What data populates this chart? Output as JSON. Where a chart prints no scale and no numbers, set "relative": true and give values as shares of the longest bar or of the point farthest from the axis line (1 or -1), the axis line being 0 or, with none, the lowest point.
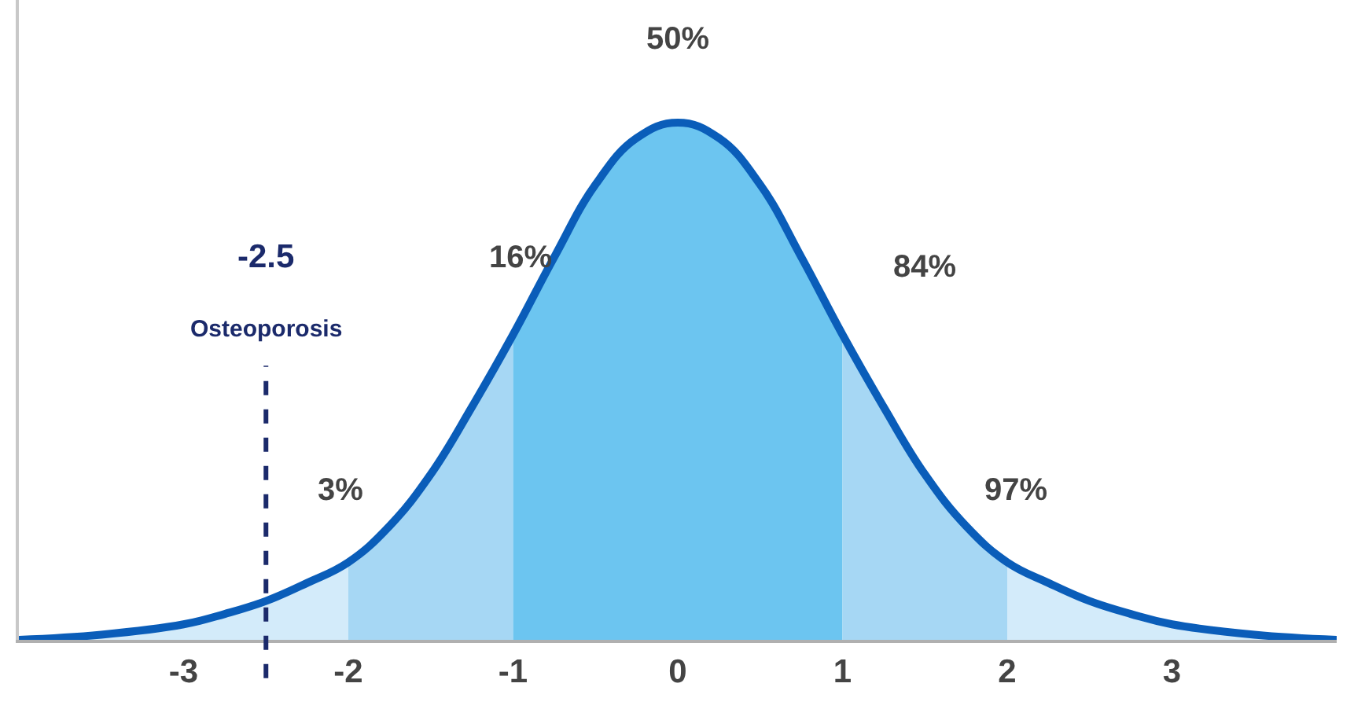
{
  "chart_data": {
    "type": "area",
    "relative": true,
    "xlim": [
      -4,
      4
    ],
    "xticks": [
      -3,
      -2,
      -1,
      0,
      1,
      2,
      3
    ],
    "series": [
      {
        "color": "#d3ebfa",
        "x": [
          -4,
          -3.5,
          -3,
          -2.75,
          -2.5,
          -2.25,
          -2
        ],
        "values": [
          0.0,
          0.01,
          0.03,
          0.05,
          0.075,
          0.11,
          0.15
        ]
      },
      {
        "color": "#a6d7f4",
        "x": [
          -2,
          -1.75,
          -1.5,
          -1.25,
          -1
        ],
        "values": [
          0.15,
          0.22,
          0.32,
          0.45,
          0.59
        ]
      },
      {
        "color": "#6cc5f0",
        "x": [
          -1,
          -0.75,
          -0.5,
          -0.25,
          0,
          0.25,
          0.5,
          0.75,
          1
        ],
        "values": [
          0.59,
          0.74,
          0.88,
          0.97,
          1,
          0.97,
          0.88,
          0.74,
          0.59
        ]
      },
      {
        "color": "#a6d7f4",
        "x": [
          1,
          1.25,
          1.5,
          1.75,
          2
        ],
        "values": [
          0.59,
          0.45,
          0.32,
          0.22,
          0.15
        ]
      },
      {
        "color": "#d3ebfa",
        "x": [
          2,
          2.25,
          2.5,
          2.75,
          3,
          3.5,
          4
        ],
        "values": [
          0.15,
          0.11,
          0.075,
          0.05,
          0.03,
          0.01,
          0.0
        ]
      },
      {
        "type": "line",
        "color": "#0a5db9",
        "x": [
          -4,
          -3.5,
          -3,
          -2.75,
          -2.5,
          -2.25,
          -2,
          -1.75,
          -1.5,
          -1.25,
          -1,
          -0.75,
          -0.5,
          -0.25,
          0,
          0.25,
          0.5,
          0.75,
          1,
          1.25,
          1.5,
          1.75,
          2,
          2.25,
          2.5,
          2.75,
          3,
          3.5,
          4
        ],
        "values": [
          0.0,
          0.01,
          0.03,
          0.05,
          0.075,
          0.11,
          0.15,
          0.22,
          0.32,
          0.45,
          0.59,
          0.74,
          0.88,
          0.97,
          1,
          0.97,
          0.88,
          0.74,
          0.59,
          0.45,
          0.32,
          0.22,
          0.15,
          0.11,
          0.075,
          0.05,
          0.03,
          0.01,
          0.0
        ]
      }
    ],
    "ref_lines": [
      {
        "axis": "x",
        "value": -2.5,
        "label": "-2.5",
        "color": "#1b2a6b",
        "line_style": "dashed"
      }
    ],
    "annotations": [
      "Osteoporosis",
      "50%",
      "16%",
      "84%",
      "3%",
      "97%"
    ]
  }
}
